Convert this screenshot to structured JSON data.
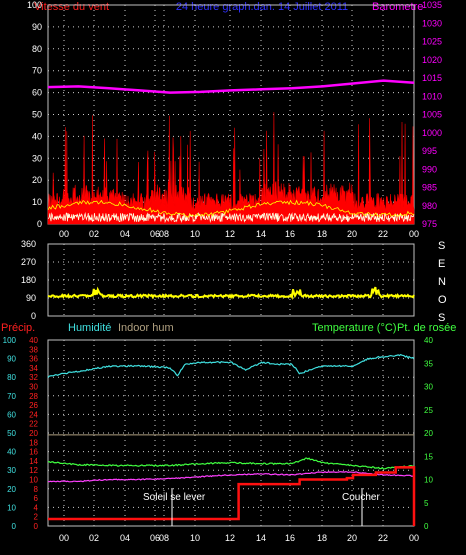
{
  "colors": {
    "background": "#000000",
    "grid": "#ffffff",
    "frame": "#c0c0c0",
    "wind_title": "#ff2020",
    "pressure": "#ff00ff",
    "center_title": "#3030ff",
    "wind": "#ff0000",
    "gust_fill": "#ff0000",
    "wind_avg": "#ffff00",
    "wind_low": "#ffffe0",
    "direction": "#ffff00",
    "rain_axis": "#ff2020",
    "humidity": "#40e0e0",
    "indoor": "#b0a080",
    "temperature": "#40ff40",
    "dewpoint": "#ff40ff",
    "rain": "#ff1010",
    "rain_rate": "#ff1010",
    "annotation": "#ffffff"
  },
  "header": {
    "wind_title": "Vitesse du vent",
    "center_title": "24 heure graph.dan. 14 Juillet 2011",
    "pressure_title": "Barometre"
  },
  "middle": {
    "compass_letters": [
      "S",
      "E",
      "N",
      "O",
      "S"
    ]
  },
  "bottom_header": {
    "rain_label": "Précip.",
    "humidity_label": "Humidité",
    "indoor_label": "Indoor hum",
    "temp_label": "Temperature (°C)",
    "dew_label": "Pt. de rosée"
  },
  "annotations": {
    "sunrise": "Soleil se lever",
    "sunset": "Coucher"
  },
  "chart_data": [
    {
      "type": "line",
      "title": "24 heure graph.dan. 14 Juillet 2011",
      "series": [
        {
          "name": "Vitesse du vent",
          "axis": "left",
          "color": "#ff0000",
          "range_hint": [
            0,
            70
          ]
        },
        {
          "name": "Barometre",
          "axis": "right",
          "color": "#ff00ff",
          "x": [
            0,
            2,
            4,
            6,
            8,
            10,
            12,
            14,
            16,
            18,
            20,
            22,
            24
          ],
          "y": [
            1012.5,
            1012.7,
            1012.2,
            1011.6,
            1011.0,
            1011.2,
            1011.6,
            1011.9,
            1012.2,
            1012.7,
            1013.5,
            1014.3,
            1013.7
          ]
        }
      ],
      "x_ticks": [
        "00",
        "02",
        "04",
        "06",
        "08",
        "10",
        "12",
        "14",
        "16",
        "18",
        "20",
        "22",
        "00"
      ],
      "y_left": {
        "ticks": [
          0,
          10,
          20,
          30,
          40,
          50,
          60,
          70,
          80,
          90,
          100
        ],
        "range": [
          0,
          100
        ]
      },
      "y_right": {
        "ticks": [
          975,
          980,
          985,
          990,
          995,
          1000,
          1005,
          1010,
          1015,
          1020,
          1025,
          1030,
          1035
        ],
        "range": [
          975,
          1035
        ]
      },
      "grid": true
    },
    {
      "type": "line",
      "series": [
        {
          "name": "wind direction",
          "color": "#ffff00",
          "x": [
            0,
            2,
            4,
            6,
            8,
            10,
            12,
            14,
            16,
            18,
            20,
            22,
            24
          ],
          "y": [
            100,
            105,
            100,
            98,
            95,
            92,
            100,
            110,
            115,
            95,
            100,
            105,
            102
          ]
        }
      ],
      "x_ticks": [
        "00",
        "02",
        "04",
        "06",
        "08",
        "10",
        "12",
        "14",
        "16",
        "18",
        "20",
        "22",
        "00"
      ],
      "y_left": {
        "ticks": [
          0,
          90,
          180,
          270,
          360
        ],
        "range": [
          0,
          360
        ]
      },
      "grid": true
    },
    {
      "type": "line",
      "series": [
        {
          "name": "Humidité",
          "axis": "humidity",
          "color": "#40e0e0",
          "x": [
            0,
            1,
            2,
            4,
            6,
            8,
            8.5,
            9,
            10,
            11,
            12,
            13,
            14,
            15,
            16,
            16.5,
            18,
            20,
            21,
            22,
            23,
            24
          ],
          "y": [
            80,
            82,
            83,
            86,
            86,
            85,
            81,
            87,
            88,
            88,
            88,
            84,
            88,
            87,
            87,
            82,
            86,
            86,
            90,
            91,
            92,
            90
          ]
        },
        {
          "name": "Indoor hum",
          "axis": "humidity",
          "color": "#b0a080",
          "x": [
            0,
            24
          ],
          "y": [
            49,
            49
          ]
        },
        {
          "name": "Temperature (°C)",
          "axis": "temp",
          "color": "#40ff40",
          "x": [
            0,
            2,
            4,
            6,
            8,
            10,
            12,
            14,
            16,
            17,
            18,
            20,
            22,
            24
          ],
          "y": [
            13.8,
            13.2,
            13.0,
            13.0,
            13.0,
            13.4,
            13.6,
            13.4,
            13.4,
            14.6,
            13.6,
            13.0,
            12.4,
            13.0
          ]
        },
        {
          "name": "Pt. de rosée",
          "axis": "temp",
          "color": "#ff40ff",
          "x": [
            0,
            2,
            4,
            6,
            8,
            10,
            12,
            14,
            16,
            18,
            20,
            22,
            24
          ],
          "y": [
            9.6,
            9.6,
            10.0,
            10.0,
            10.2,
            10.6,
            11.0,
            11.2,
            11.0,
            11.6,
            11.6,
            11.0,
            10.8
          ]
        },
        {
          "name": "Précip.",
          "axis": "rain",
          "color": "#ff1010",
          "x": [
            0,
            0.01,
            12.3,
            12.5,
            14,
            16.2,
            16.5,
            18.4,
            19.6,
            20,
            21.5,
            22.8,
            23.5,
            23.9,
            24
          ],
          "y": [
            1.5,
            1.5,
            1.5,
            9,
            9,
            9,
            10,
            10,
            10.3,
            11,
            11.5,
            12.6,
            12.6,
            12.6,
            0
          ]
        }
      ],
      "x_ticks": [
        "00",
        "02",
        "04",
        "06",
        "08",
        "10",
        "12",
        "14",
        "16",
        "18",
        "20",
        "22",
        "00"
      ],
      "y_humidity": {
        "ticks": [
          0,
          10,
          20,
          30,
          40,
          50,
          60,
          70,
          80,
          90,
          100
        ],
        "range": [
          0,
          100
        ]
      },
      "y_rain": {
        "ticks": [
          0,
          2,
          4,
          6,
          8,
          10,
          12,
          14,
          16,
          18,
          20,
          22,
          24,
          26,
          28,
          30,
          32,
          34,
          36,
          38,
          40
        ],
        "range": [
          0,
          40
        ]
      },
      "y_temp": {
        "ticks": [
          0,
          5,
          10,
          15,
          20,
          25,
          30,
          35,
          40
        ],
        "range": [
          0,
          40
        ]
      },
      "grid": true
    }
  ]
}
